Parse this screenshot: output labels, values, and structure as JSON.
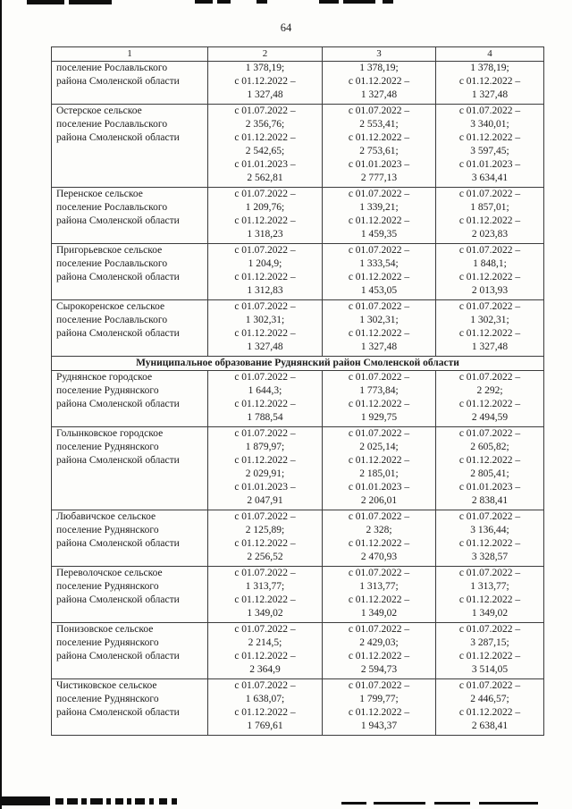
{
  "page": {
    "number": "64"
  },
  "table": {
    "column_headers": [
      "1",
      "2",
      "3",
      "4"
    ],
    "rows": [
      {
        "type": "data",
        "name_lines": [
          "поселение Рославльского",
          "района Смоленской области"
        ],
        "value_columns": [
          [
            "1 378,19;",
            "с 01.12.2022 –",
            "1 327,48"
          ],
          [
            "1 378,19;",
            "с 01.12.2022 –",
            "1 327,48"
          ],
          [
            "1 378,19;",
            "с 01.12.2022 –",
            "1 327,48"
          ]
        ]
      },
      {
        "type": "data",
        "name_lines": [
          "Остерское сельское",
          "поселение Рославльского",
          "района Смоленской области"
        ],
        "value_columns": [
          [
            "с 01.07.2022 –",
            "2 356,76;",
            "с 01.12.2022 –",
            "2 542,65;",
            "с 01.01.2023 –",
            "2 562,81"
          ],
          [
            "с 01.07.2022 –",
            "2 553,41;",
            "с 01.12.2022 –",
            "2 753,61;",
            "с 01.01.2023 –",
            "2 777,13"
          ],
          [
            "с 01.07.2022 –",
            "3 340,01;",
            "с 01.12.2022 –",
            "3 597,45;",
            "с 01.01.2023 –",
            "3 634,41"
          ]
        ]
      },
      {
        "type": "data",
        "name_lines": [
          "Перенское сельское",
          "поселение Рославльского",
          "района Смоленской области"
        ],
        "value_columns": [
          [
            "с 01.07.2022 –",
            "1 209,76;",
            "с 01.12.2022 –",
            "1 318,23"
          ],
          [
            "с 01.07.2022 –",
            "1 339,21;",
            "с 01.12.2022 –",
            "1 459,35"
          ],
          [
            "с 01.07.2022 –",
            "1 857,01;",
            "с 01.12.2022 –",
            "2 023,83"
          ]
        ]
      },
      {
        "type": "data",
        "name_lines": [
          "Пригорьевское сельское",
          "поселение Рославльского",
          "района Смоленской области"
        ],
        "value_columns": [
          [
            "с 01.07.2022 –",
            "1 204,9;",
            "с 01.12.2022 –",
            "1 312,83"
          ],
          [
            "с 01.07.2022 –",
            "1 333,54;",
            "с 01.12.2022 –",
            "1 453,05"
          ],
          [
            "с 01.07.2022 –",
            "1 848,1;",
            "с 01.12.2022 –",
            "2 013,93"
          ]
        ]
      },
      {
        "type": "data",
        "name_lines": [
          "Сырокоренское сельское",
          "поселение Рославльского",
          "района Смоленской области"
        ],
        "value_columns": [
          [
            "с 01.07.2022 –",
            "1 302,31;",
            "с 01.12.2022 –",
            "1 327,48"
          ],
          [
            "с 01.07.2022 –",
            "1 302,31;",
            "с 01.12.2022 –",
            "1 327,48"
          ],
          [
            "с 01.07.2022 –",
            "1 302,31;",
            "с 01.12.2022 –",
            "1 327,48"
          ]
        ]
      },
      {
        "type": "section",
        "title": "Муниципальное образование Руднянский район Смоленской области"
      },
      {
        "type": "data",
        "name_lines": [
          "Руднянское городское",
          "поселение Руднянского",
          "района Смоленской области"
        ],
        "value_columns": [
          [
            "с 01.07.2022 –",
            "1 644,3;",
            "с 01.12.2022 –",
            "1 788,54"
          ],
          [
            "с 01.07.2022 –",
            "1 773,84;",
            "с 01.12.2022 –",
            "1 929,75"
          ],
          [
            "с 01.07.2022 –",
            "2 292;",
            "с 01.12.2022 –",
            "2 494,59"
          ]
        ]
      },
      {
        "type": "data",
        "name_lines": [
          "Голынковское городское",
          "поселение Руднянского",
          "района Смоленской области"
        ],
        "value_columns": [
          [
            "с 01.07.2022 –",
            "1 879,97;",
            "с 01.12.2022 –",
            "2 029,91;",
            "с 01.01.2023 –",
            "2 047,91"
          ],
          [
            "с 01.07.2022 –",
            "2 025,14;",
            "с 01.12.2022 –",
            "2 185,01;",
            "с 01.01.2023 –",
            "2 206,01"
          ],
          [
            "с 01.07.2022 –",
            "2 605,82;",
            "с 01.12.2022 –",
            "2 805,41;",
            "с 01.01.2023 –",
            "2 838,41"
          ]
        ]
      },
      {
        "type": "data",
        "name_lines": [
          "Любавичское сельское",
          "поселение Руднянского",
          "района Смоленской области"
        ],
        "value_columns": [
          [
            "с 01.07.2022 –",
            "2 125,89;",
            "с 01.12.2022 –",
            "2 256,52"
          ],
          [
            "с 01.07.2022 –",
            "2 328;",
            "с 01.12.2022 –",
            "2 470,93"
          ],
          [
            "с 01.07.2022 –",
            "3 136,44;",
            "с 01.12.2022 –",
            "3 328,57"
          ]
        ]
      },
      {
        "type": "data",
        "name_lines": [
          "Переволочское сельское",
          "поселение Руднянского",
          "района Смоленской области"
        ],
        "value_columns": [
          [
            "с 01.07.2022 –",
            "1 313,77;",
            "с 01.12.2022 –",
            "1 349,02"
          ],
          [
            "с 01.07.2022 –",
            "1 313,77;",
            "с 01.12.2022 –",
            "1 349,02"
          ],
          [
            "с 01.07.2022 –",
            "1 313,77;",
            "с 01.12.2022 –",
            "1 349,02"
          ]
        ]
      },
      {
        "type": "data",
        "name_lines": [
          "Понизовское сельское",
          "поселение Руднянского",
          "района Смоленской области"
        ],
        "value_columns": [
          [
            "с 01.07.2022 –",
            "2 214,5;",
            "с 01.12.2022 –",
            "2 364,9"
          ],
          [
            "с 01.07.2022 –",
            "2 429,03;",
            "с 01.12.2022 –",
            "2 594,73"
          ],
          [
            "с 01.07.2022 –",
            "3 287,15;",
            "с 01.12.2022 –",
            "3 514,05"
          ]
        ]
      },
      {
        "type": "data",
        "name_lines": [
          "Чистиковское сельское",
          "поселение Руднянского",
          "района Смоленской области"
        ],
        "value_columns": [
          [
            "с 01.07.2022 –",
            "1 638,07;",
            "с 01.12.2022 –",
            "1 769,61"
          ],
          [
            "с 01.07.2022 –",
            "1 799,77;",
            "с 01.12.2022 –",
            "1 943,37"
          ],
          [
            "с 01.07.2022 –",
            "2 446,57;",
            "с 01.12.2022 –",
            "2 638,41"
          ]
        ]
      }
    ]
  }
}
